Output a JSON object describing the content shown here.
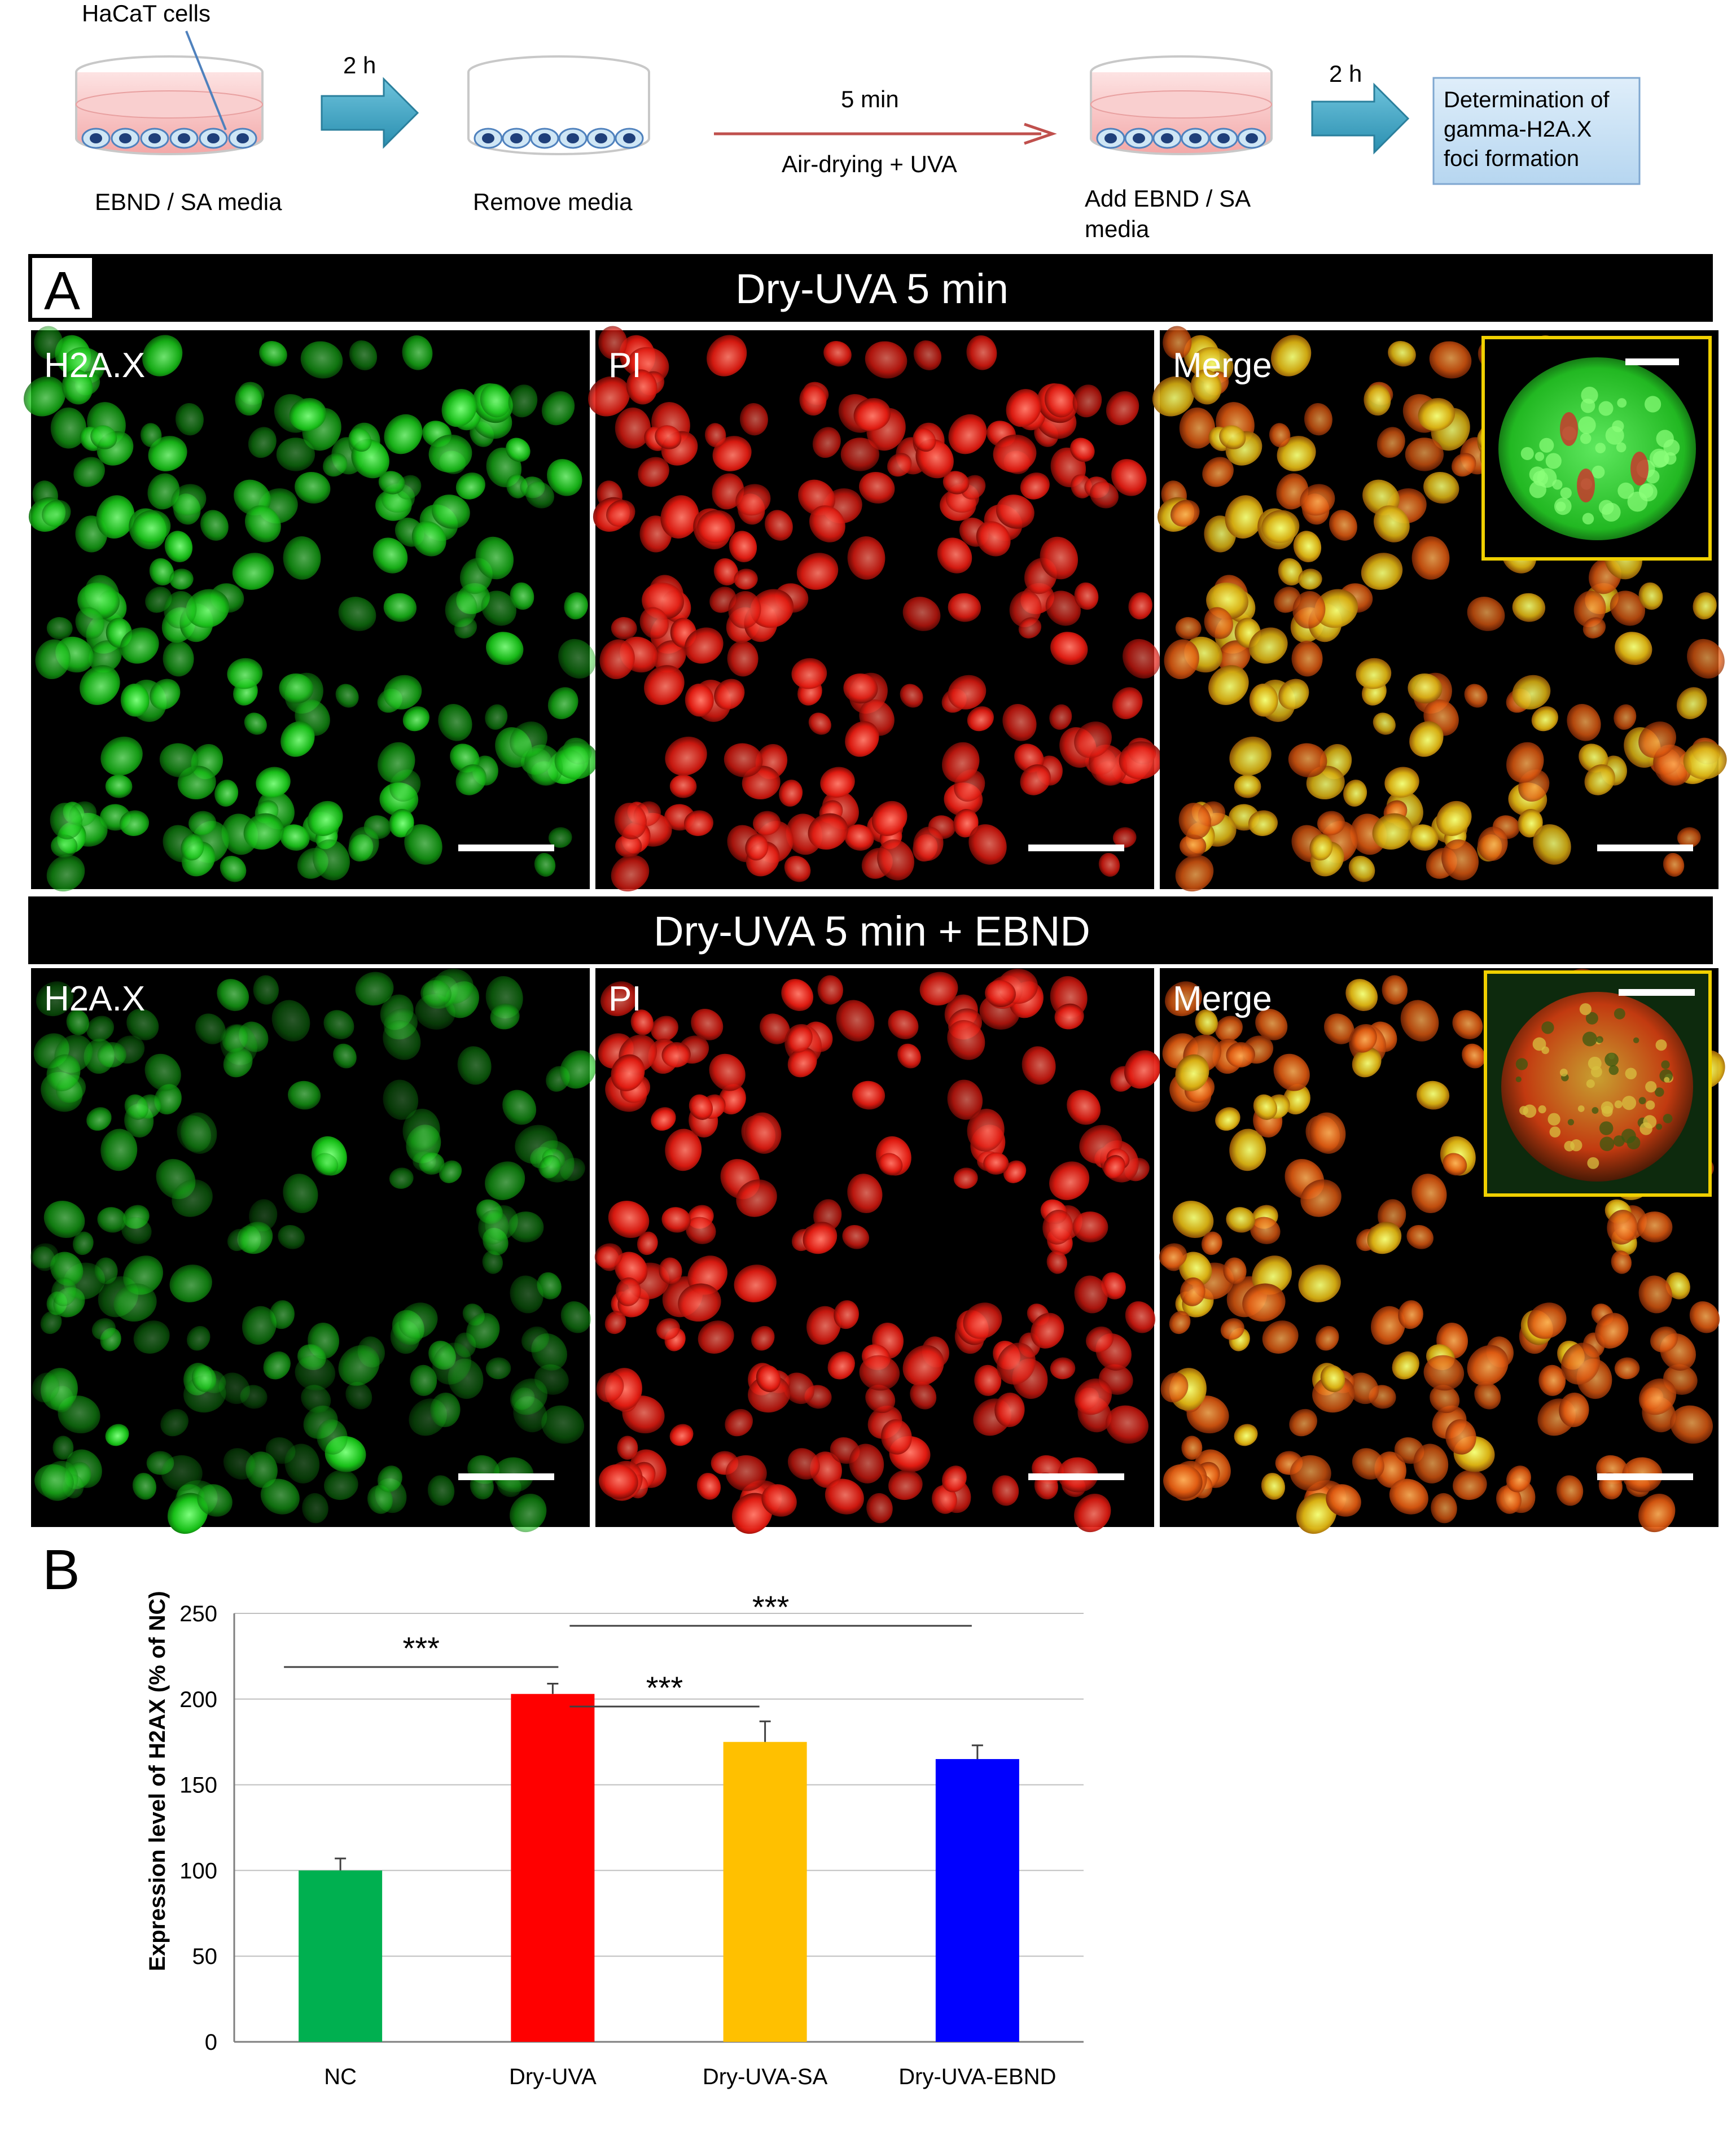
{
  "workflow": {
    "cells_label": "HaCaT cells",
    "dish1_label": "EBND / SA media",
    "step1_time": "2 h",
    "dish2_label": "Remove media",
    "step2_time": "5 min",
    "step2_action": "Air-drying + UVA",
    "dish3_label_line1": "Add EBND / SA",
    "dish3_label_line2": "media",
    "step3_time": "2 h",
    "result_line1": "Determination of",
    "result_line2": "gamma-H2A.X",
    "result_line3": "foci formation"
  },
  "panel_a": {
    "letter": "A",
    "rows": [
      {
        "title": "Dry-UVA 5 min",
        "labels": [
          "H2A.X",
          "PI",
          "Merge"
        ]
      },
      {
        "title": "Dry-UVA 5 min + EBND",
        "labels": [
          "H2A.X",
          "PI",
          "Merge"
        ]
      }
    ]
  },
  "panel_b": {
    "letter": "B"
  },
  "chart_data": {
    "type": "bar",
    "categories": [
      "NC",
      "Dry-UVA",
      "Dry-UVA-SA",
      "Dry-UVA-EBND"
    ],
    "values": [
      100,
      203,
      175,
      165
    ],
    "errors": [
      7,
      6,
      12,
      8
    ],
    "colors": [
      "#00B050",
      "#FF0000",
      "#FFC000",
      "#0000FF"
    ],
    "ylabel": "Expression level of H2AX (% of NC)",
    "ylim": [
      0,
      250
    ],
    "yticks": [
      0,
      50,
      100,
      150,
      200,
      250
    ],
    "grid": true,
    "significance": [
      {
        "from": "NC",
        "to": "Dry-UVA",
        "label": "***"
      },
      {
        "from": "Dry-UVA",
        "to": "Dry-UVA-SA",
        "label": "***"
      },
      {
        "from": "Dry-UVA",
        "to": "Dry-UVA-EBND",
        "label": "***"
      }
    ]
  }
}
